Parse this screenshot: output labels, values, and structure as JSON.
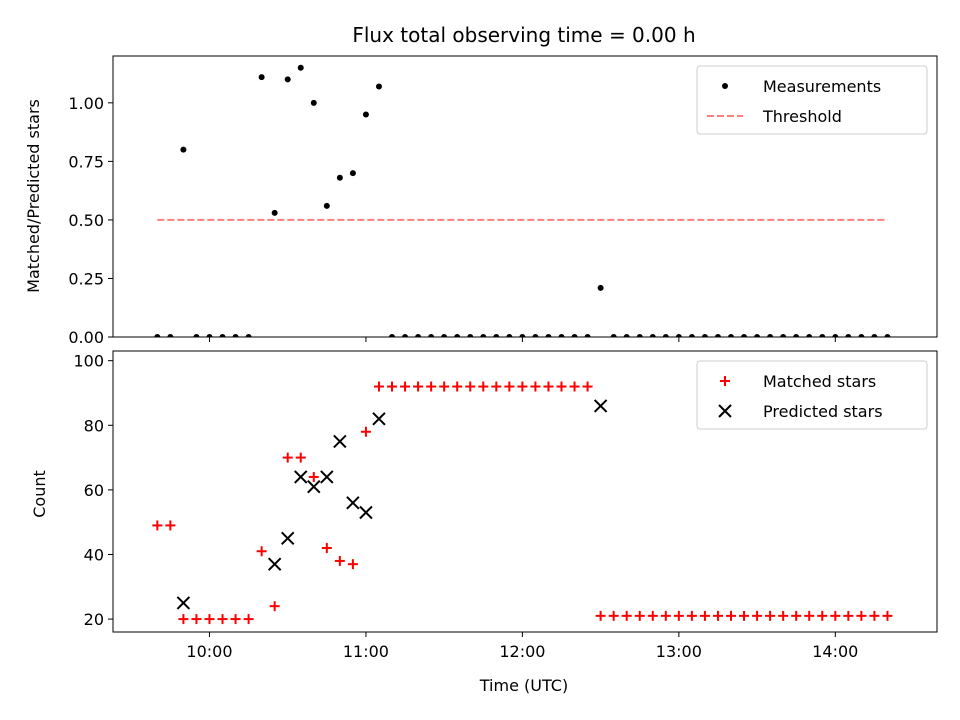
{
  "chart_data": [
    {
      "type": "scatter",
      "title": "Flux total observing time = 0.00 h",
      "xlabel": "",
      "ylabel": "Matched/Predicted stars",
      "ylim": [
        0,
        1.2
      ],
      "yticks": [
        "0.00",
        "0.25",
        "0.50",
        "0.75",
        "1.00"
      ],
      "ytick_values": [
        0,
        0.25,
        0.5,
        0.75,
        1.0
      ],
      "xlim": [
        "09:23",
        "14:39"
      ],
      "xtick_values": [
        "10:00",
        "11:00",
        "12:00",
        "13:00",
        "14:00"
      ],
      "legend": {
        "placement": "top-right",
        "entries": [
          "Measurements",
          "Threshold"
        ]
      },
      "series": [
        {
          "name": "Measurements",
          "marker": "dot",
          "color": "#000000",
          "x": [
            "09:40",
            "09:45",
            "09:50",
            "09:55",
            "10:00",
            "10:05",
            "10:10",
            "10:15",
            "10:20",
            "10:25",
            "10:30",
            "10:35",
            "10:40",
            "10:45",
            "10:50",
            "10:55",
            "11:00",
            "11:05",
            "11:10",
            "11:15",
            "11:20",
            "11:25",
            "11:30",
            "11:35",
            "11:40",
            "11:45",
            "11:50",
            "11:55",
            "12:00",
            "12:05",
            "12:10",
            "12:15",
            "12:20",
            "12:25",
            "12:30",
            "12:35",
            "12:40",
            "12:45",
            "12:50",
            "12:55",
            "13:00",
            "13:05",
            "13:10",
            "13:15",
            "13:20",
            "13:25",
            "13:30",
            "13:35",
            "13:40",
            "13:45",
            "13:50",
            "13:55",
            "14:00",
            "14:05",
            "14:10",
            "14:15",
            "14:20"
          ],
          "y": [
            0,
            0,
            0.8,
            0,
            0,
            0,
            0,
            0,
            1.11,
            0.53,
            1.1,
            1.15,
            1.0,
            0.56,
            0.68,
            0.7,
            0.95,
            1.07,
            0,
            0,
            0,
            0,
            0,
            0,
            0,
            0,
            0,
            0,
            0,
            0,
            0,
            0,
            0,
            0,
            0.21,
            0,
            0,
            0,
            0,
            0,
            0,
            0,
            0,
            0,
            0,
            0,
            0,
            0,
            0,
            0,
            0,
            0,
            0,
            0,
            0,
            0,
            0
          ]
        },
        {
          "name": "Threshold",
          "style": "dashed",
          "color": "#ff7f7f",
          "x": [
            "09:40",
            "14:20"
          ],
          "y": [
            0.5,
            0.5
          ]
        }
      ]
    },
    {
      "type": "scatter",
      "title": "",
      "xlabel": "Time (UTC)",
      "ylabel": "Count",
      "ylim": [
        16,
        103
      ],
      "yticks": [
        "20",
        "40",
        "60",
        "80",
        "100"
      ],
      "ytick_values": [
        20,
        40,
        60,
        80,
        100
      ],
      "xlim": [
        "09:23",
        "14:39"
      ],
      "xticks": [
        "10:00",
        "11:00",
        "12:00",
        "13:00",
        "14:00"
      ],
      "xtick_values": [
        "10:00",
        "11:00",
        "12:00",
        "13:00",
        "14:00"
      ],
      "legend": {
        "placement": "top-right",
        "entries": [
          "Matched stars",
          "Predicted stars"
        ]
      },
      "series": [
        {
          "name": "Matched stars",
          "marker": "plus",
          "color": "#ff0000",
          "x": [
            "09:40",
            "09:45",
            "09:50",
            "09:55",
            "10:00",
            "10:05",
            "10:10",
            "10:15",
            "10:20",
            "10:25",
            "10:30",
            "10:35",
            "10:40",
            "10:45",
            "10:50",
            "10:55",
            "11:00",
            "11:05",
            "11:10",
            "11:15",
            "11:20",
            "11:25",
            "11:30",
            "11:35",
            "11:40",
            "11:45",
            "11:50",
            "11:55",
            "12:00",
            "12:05",
            "12:10",
            "12:15",
            "12:20",
            "12:25",
            "12:30",
            "12:35",
            "12:40",
            "12:45",
            "12:50",
            "12:55",
            "13:00",
            "13:05",
            "13:10",
            "13:15",
            "13:20",
            "13:25",
            "13:30",
            "13:35",
            "13:40",
            "13:45",
            "13:50",
            "13:55",
            "14:00",
            "14:05",
            "14:10",
            "14:15",
            "14:20"
          ],
          "y": [
            49,
            49,
            20,
            20,
            20,
            20,
            20,
            20,
            41,
            24,
            70,
            70,
            64,
            42,
            38,
            37,
            78,
            92,
            92,
            92,
            92,
            92,
            92,
            92,
            92,
            92,
            92,
            92,
            92,
            92,
            92,
            92,
            92,
            92,
            21,
            21,
            21,
            21,
            21,
            21,
            21,
            21,
            21,
            21,
            21,
            21,
            21,
            21,
            21,
            21,
            21,
            21,
            21,
            21,
            21,
            21,
            21
          ]
        },
        {
          "name": "Predicted stars",
          "marker": "x",
          "color": "#000000",
          "x": [
            "09:50",
            "10:25",
            "10:30",
            "10:35",
            "10:40",
            "10:45",
            "10:50",
            "10:55",
            "11:00",
            "11:05",
            "12:30"
          ],
          "y": [
            25,
            37,
            45,
            64,
            61,
            64,
            75,
            56,
            53,
            82,
            86
          ]
        }
      ]
    }
  ]
}
